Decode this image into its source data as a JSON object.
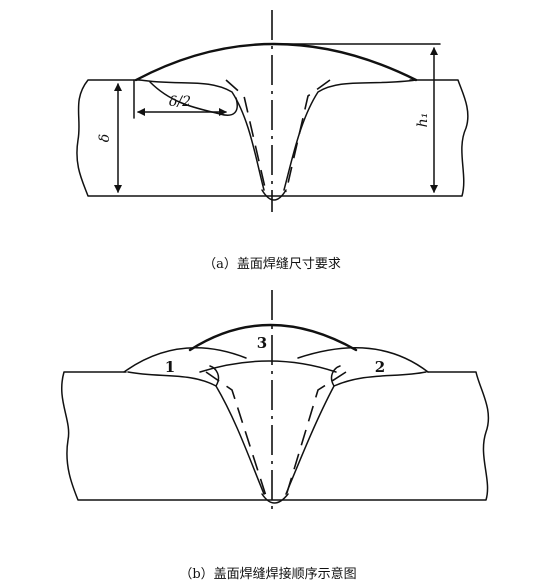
{
  "panel_a": {
    "caption": "（a）盖面焊缝尺寸要求",
    "labels": {
      "thickness": "δ",
      "half_thickness": "δ/2",
      "height": "h₁"
    }
  },
  "panel_b": {
    "caption": "（b）盖面焊缝焊接顺序示意图",
    "pass_labels": [
      "1",
      "2",
      "3"
    ]
  },
  "colors": {
    "line": "#111111",
    "background": "#ffffff"
  }
}
